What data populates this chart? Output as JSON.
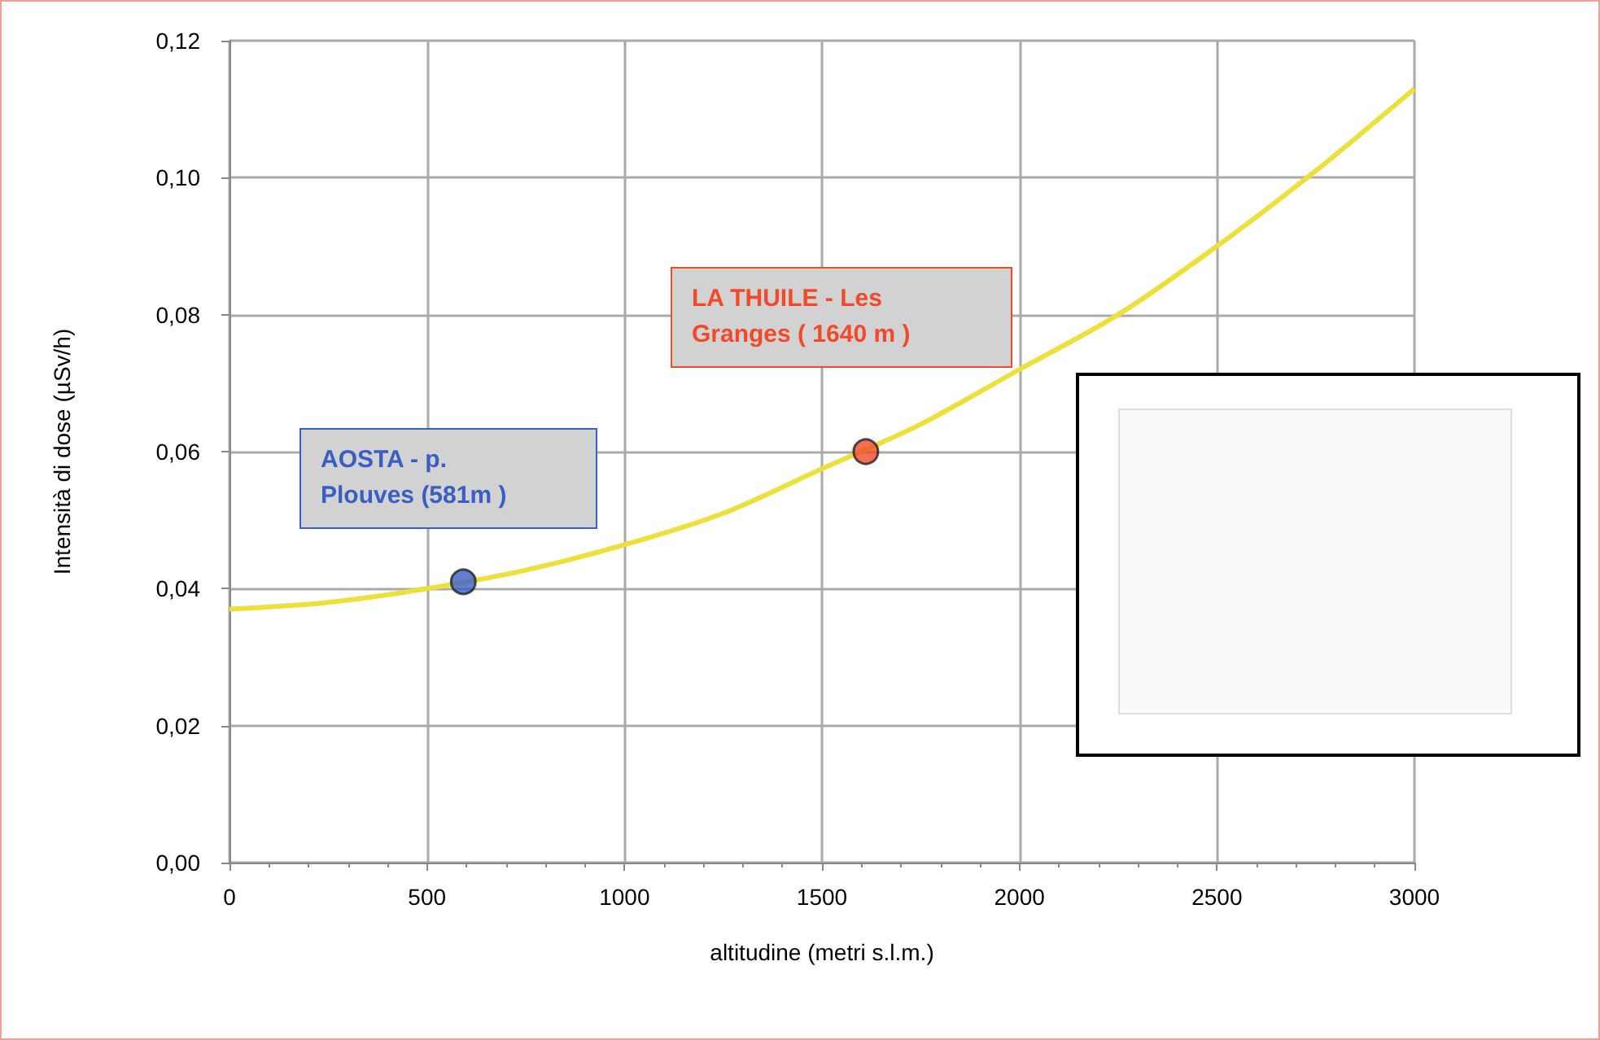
{
  "chart_data": {
    "type": "line",
    "xlabel": "altitudine (metri s.l.m.)",
    "ylabel": "Intensità di dose (µSv/h)",
    "xlim": [
      0,
      3000
    ],
    "xticks": [
      0,
      500,
      1000,
      1500,
      2000,
      2500,
      3000
    ],
    "ylim": [
      0,
      0.12
    ],
    "yticks": [
      {
        "value": 0,
        "label": "0,00"
      },
      {
        "value": 0.02,
        "label": "0,02"
      },
      {
        "value": 0.04,
        "label": "0,04"
      },
      {
        "value": 0.06,
        "label": "0,06"
      },
      {
        "value": 0.08,
        "label": "0,08"
      },
      {
        "value": 0.1,
        "label": "0,10"
      },
      {
        "value": 0.12,
        "label": "0,12"
      }
    ],
    "grid": true,
    "series": [
      {
        "type": "line",
        "color": "#eee03a",
        "x": [
          0,
          250,
          500,
          750,
          1000,
          1250,
          1500,
          1750,
          2000,
          2250,
          2500,
          2750,
          3000
        ],
        "values": [
          0.037,
          0.038,
          0.04,
          0.0427,
          0.0464,
          0.051,
          0.0575,
          0.064,
          0.072,
          0.08,
          0.09,
          0.101,
          0.113
        ]
      },
      {
        "type": "scatter",
        "marker": "circle",
        "color": "#3a5ec4",
        "x": [
          592
        ],
        "values": [
          0.041
        ]
      },
      {
        "type": "scatter",
        "marker": "circle",
        "color": "#f04a2a",
        "x": [
          1611
        ],
        "values": [
          0.06
        ]
      }
    ],
    "annotations": [
      "AOSTA - p. Plouves (581m )",
      "LA THUILE - Les Granges ( 1640 m )"
    ]
  }
}
